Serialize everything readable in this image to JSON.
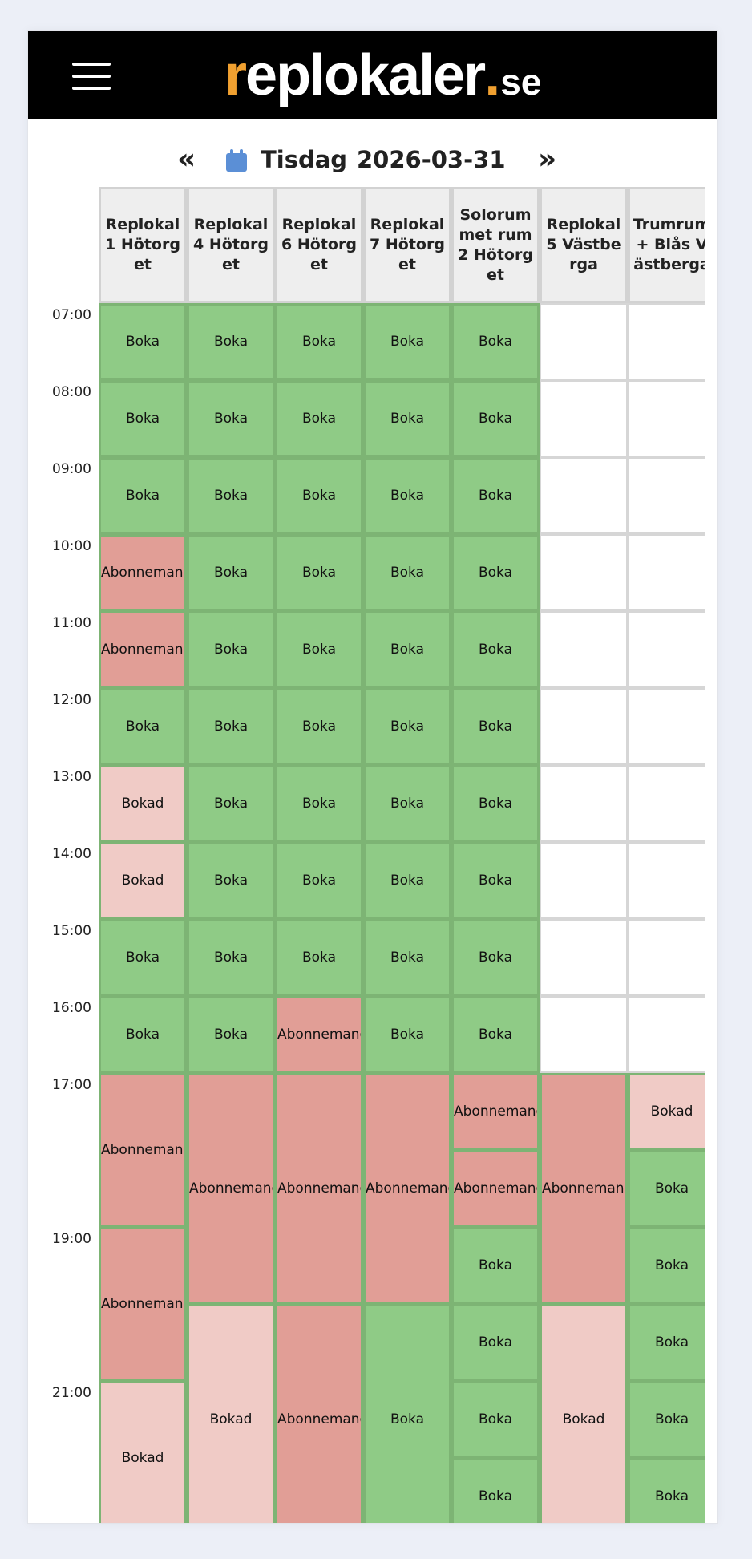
{
  "header": {
    "menu_icon": "hamburger-icon",
    "logo": {
      "prefix": "r",
      "main": "eplokaler",
      "dot": ".",
      "tld": "se"
    },
    "brand_color": "#f0a030"
  },
  "datebar": {
    "prev_icon": "double-chevron-left-icon",
    "prev_label": "«",
    "calendar_icon": "calendar-icon",
    "day": "Tisdag",
    "date": "2026-03-31",
    "next_icon": "double-chevron-right-icon",
    "next_label": "»"
  },
  "colors": {
    "available": "#8fcb86",
    "subscription": "#e19e96",
    "booked": "#f0cbc6"
  },
  "times": [
    "07:00",
    "08:00",
    "09:00",
    "10:00",
    "11:00",
    "12:00",
    "13:00",
    "14:00",
    "15:00",
    "16:00",
    "17:00",
    "19:00",
    "21:00"
  ],
  "columns": [
    {
      "name": "Replokal 1 Hötorget",
      "cells": [
        {
          "label": "Boka",
          "status": "available",
          "hours": 1
        },
        {
          "label": "Boka",
          "status": "available",
          "hours": 1
        },
        {
          "label": "Boka",
          "status": "available",
          "hours": 1
        },
        {
          "label": "Abonnemang",
          "status": "subscription",
          "hours": 1
        },
        {
          "label": "Abonnemang",
          "status": "subscription",
          "hours": 1
        },
        {
          "label": "Boka",
          "status": "available",
          "hours": 1
        },
        {
          "label": "Bokad",
          "status": "booked",
          "hours": 1
        },
        {
          "label": "Bokad",
          "status": "booked",
          "hours": 1
        },
        {
          "label": "Boka",
          "status": "available",
          "hours": 1
        },
        {
          "label": "Boka",
          "status": "available",
          "hours": 1
        },
        {
          "label": "Abonnemang",
          "status": "subscription",
          "hours": 2
        },
        {
          "label": "Abonnemang",
          "status": "subscription",
          "hours": 2
        },
        {
          "label": "Bokad",
          "status": "booked",
          "hours": 2
        }
      ]
    },
    {
      "name": "Replokal 4 Hötorget",
      "cells": [
        {
          "label": "Boka",
          "status": "available",
          "hours": 1
        },
        {
          "label": "Boka",
          "status": "available",
          "hours": 1
        },
        {
          "label": "Boka",
          "status": "available",
          "hours": 1
        },
        {
          "label": "Boka",
          "status": "available",
          "hours": 1
        },
        {
          "label": "Boka",
          "status": "available",
          "hours": 1
        },
        {
          "label": "Boka",
          "status": "available",
          "hours": 1
        },
        {
          "label": "Boka",
          "status": "available",
          "hours": 1
        },
        {
          "label": "Boka",
          "status": "available",
          "hours": 1
        },
        {
          "label": "Boka",
          "status": "available",
          "hours": 1
        },
        {
          "label": "Boka",
          "status": "available",
          "hours": 1
        },
        {
          "label": "Abonnemang",
          "status": "subscription",
          "hours": 3
        },
        {
          "label": "Bokad",
          "status": "booked",
          "hours": 3
        }
      ]
    },
    {
      "name": "Replokal 6 Hötorget",
      "cells": [
        {
          "label": "Boka",
          "status": "available",
          "hours": 1
        },
        {
          "label": "Boka",
          "status": "available",
          "hours": 1
        },
        {
          "label": "Boka",
          "status": "available",
          "hours": 1
        },
        {
          "label": "Boka",
          "status": "available",
          "hours": 1
        },
        {
          "label": "Boka",
          "status": "available",
          "hours": 1
        },
        {
          "label": "Boka",
          "status": "available",
          "hours": 1
        },
        {
          "label": "Boka",
          "status": "available",
          "hours": 1
        },
        {
          "label": "Boka",
          "status": "available",
          "hours": 1
        },
        {
          "label": "Boka",
          "status": "available",
          "hours": 1
        },
        {
          "label": "Abonnemang",
          "status": "subscription",
          "hours": 1
        },
        {
          "label": "Abonnemang",
          "status": "subscription",
          "hours": 3
        },
        {
          "label": "Abonnemang",
          "status": "subscription",
          "hours": 3
        }
      ]
    },
    {
      "name": "Replokal 7 Hötorget",
      "cells": [
        {
          "label": "Boka",
          "status": "available",
          "hours": 1
        },
        {
          "label": "Boka",
          "status": "available",
          "hours": 1
        },
        {
          "label": "Boka",
          "status": "available",
          "hours": 1
        },
        {
          "label": "Boka",
          "status": "available",
          "hours": 1
        },
        {
          "label": "Boka",
          "status": "available",
          "hours": 1
        },
        {
          "label": "Boka",
          "status": "available",
          "hours": 1
        },
        {
          "label": "Boka",
          "status": "available",
          "hours": 1
        },
        {
          "label": "Boka",
          "status": "available",
          "hours": 1
        },
        {
          "label": "Boka",
          "status": "available",
          "hours": 1
        },
        {
          "label": "Boka",
          "status": "available",
          "hours": 1
        },
        {
          "label": "Abonnemang",
          "status": "subscription",
          "hours": 3
        },
        {
          "label": "Boka",
          "status": "available",
          "hours": 3
        }
      ]
    },
    {
      "name": "Solorum met rum2 Hötorget",
      "cells": [
        {
          "label": "Boka",
          "status": "available",
          "hours": 1
        },
        {
          "label": "Boka",
          "status": "available",
          "hours": 1
        },
        {
          "label": "Boka",
          "status": "available",
          "hours": 1
        },
        {
          "label": "Boka",
          "status": "available",
          "hours": 1
        },
        {
          "label": "Boka",
          "status": "available",
          "hours": 1
        },
        {
          "label": "Boka",
          "status": "available",
          "hours": 1
        },
        {
          "label": "Boka",
          "status": "available",
          "hours": 1
        },
        {
          "label": "Boka",
          "status": "available",
          "hours": 1
        },
        {
          "label": "Boka",
          "status": "available",
          "hours": 1
        },
        {
          "label": "Boka",
          "status": "available",
          "hours": 1
        },
        {
          "label": "Abonnemang",
          "status": "subscription",
          "hours": 1
        },
        {
          "label": "Abonnemang",
          "status": "subscription",
          "hours": 1
        },
        {
          "label": "Boka",
          "status": "available",
          "hours": 1
        },
        {
          "label": "Boka",
          "status": "available",
          "hours": 1
        },
        {
          "label": "Boka",
          "status": "available",
          "hours": 1
        },
        {
          "label": "Boka",
          "status": "available",
          "hours": 1
        }
      ]
    },
    {
      "name": "Replokal 5 Västberga",
      "cells": [
        {
          "label": "",
          "status": "empty",
          "hours": 1
        },
        {
          "label": "",
          "status": "empty",
          "hours": 1
        },
        {
          "label": "",
          "status": "empty",
          "hours": 1
        },
        {
          "label": "",
          "status": "empty",
          "hours": 1
        },
        {
          "label": "",
          "status": "empty",
          "hours": 1
        },
        {
          "label": "",
          "status": "empty",
          "hours": 1
        },
        {
          "label": "",
          "status": "empty",
          "hours": 1
        },
        {
          "label": "",
          "status": "empty",
          "hours": 1
        },
        {
          "label": "",
          "status": "empty",
          "hours": 1
        },
        {
          "label": "",
          "status": "empty",
          "hours": 1
        },
        {
          "label": "Abonnemang",
          "status": "subscription",
          "hours": 3
        },
        {
          "label": "Bokad",
          "status": "booked",
          "hours": 3
        }
      ]
    },
    {
      "name": "Trumrum + Blås Västberga",
      "cells": [
        {
          "label": "",
          "status": "empty",
          "hours": 1
        },
        {
          "label": "",
          "status": "empty",
          "hours": 1
        },
        {
          "label": "",
          "status": "empty",
          "hours": 1
        },
        {
          "label": "",
          "status": "empty",
          "hours": 1
        },
        {
          "label": "",
          "status": "empty",
          "hours": 1
        },
        {
          "label": "",
          "status": "empty",
          "hours": 1
        },
        {
          "label": "",
          "status": "empty",
          "hours": 1
        },
        {
          "label": "",
          "status": "empty",
          "hours": 1
        },
        {
          "label": "",
          "status": "empty",
          "hours": 1
        },
        {
          "label": "",
          "status": "empty",
          "hours": 1
        },
        {
          "label": "Bokad",
          "status": "booked",
          "hours": 1
        },
        {
          "label": "Boka",
          "status": "available",
          "hours": 1
        },
        {
          "label": "Boka",
          "status": "available",
          "hours": 1
        },
        {
          "label": "Boka",
          "status": "available",
          "hours": 1
        },
        {
          "label": "Boka",
          "status": "available",
          "hours": 1
        },
        {
          "label": "Boka",
          "status": "available",
          "hours": 1
        }
      ]
    }
  ]
}
